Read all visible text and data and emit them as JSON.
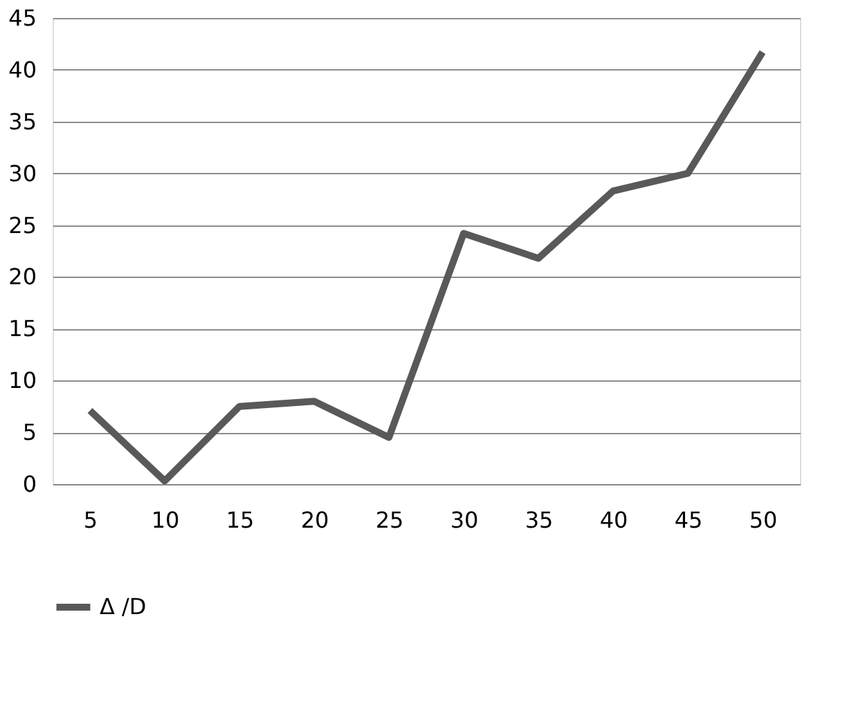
{
  "chart_data": {
    "type": "line",
    "categories": [
      "5",
      "10",
      "15",
      "20",
      "25",
      "30",
      "35",
      "40",
      "45",
      "50"
    ],
    "series": [
      {
        "name": "Δ /D",
        "color": "#595959",
        "values": [
          7.1,
          0.3,
          7.5,
          8.0,
          4.5,
          24.2,
          21.8,
          28.3,
          30.0,
          41.7
        ]
      }
    ],
    "ylim": [
      0,
      45
    ],
    "yticks": [
      0,
      5,
      10,
      15,
      20,
      25,
      30,
      35,
      40,
      45
    ],
    "grid": "y",
    "legend": "bottom",
    "marker": "none",
    "line_style": "solid"
  }
}
